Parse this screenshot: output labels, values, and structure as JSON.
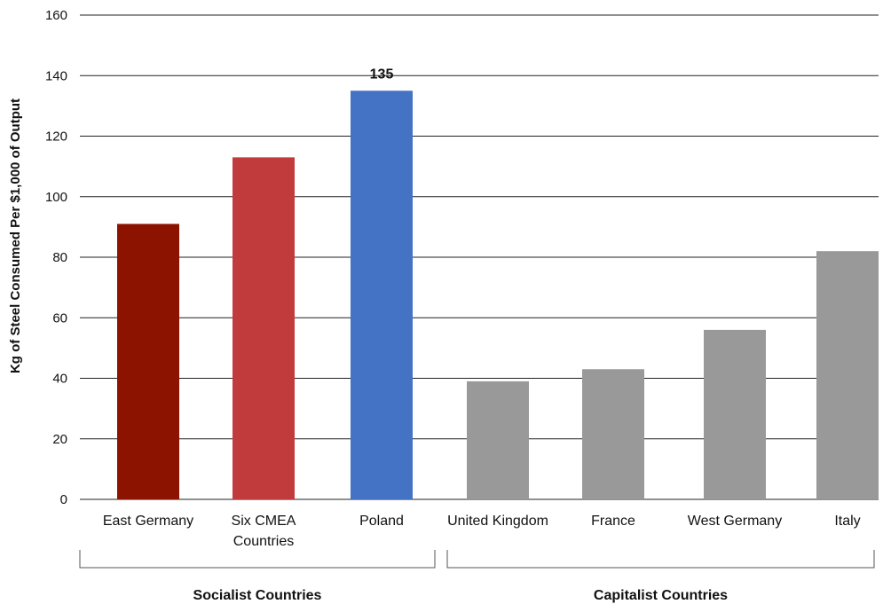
{
  "chart_data": {
    "type": "bar",
    "ylabel": "Kg of Steel Consumed Per $1,000 of Output",
    "xlabel": "",
    "ylim": [
      0,
      160
    ],
    "yticks": [
      0,
      20,
      40,
      60,
      80,
      100,
      120,
      140,
      160
    ],
    "grid": true,
    "categories": [
      {
        "label": [
          "East Germany"
        ],
        "value": 91,
        "color": "#8B1300"
      },
      {
        "label": [
          "Six CMEA",
          "Countries"
        ],
        "value": 113,
        "color": "#C13A3C"
      },
      {
        "label": [
          "Poland"
        ],
        "value": 135,
        "color": "#4472C4",
        "data_label": "135"
      },
      {
        "label": [
          "United Kingdom"
        ],
        "value": 39,
        "color": "#999999"
      },
      {
        "label": [
          "France"
        ],
        "value": 43,
        "color": "#999999"
      },
      {
        "label": [
          "West Germany"
        ],
        "value": 56,
        "color": "#999999"
      },
      {
        "label": [
          "Italy"
        ],
        "value": 82,
        "color": "#999999"
      }
    ],
    "groups": [
      {
        "label": "Socialist Countries",
        "categories": [
          0,
          1,
          2
        ]
      },
      {
        "label": "Capitalist Countries",
        "categories": [
          3,
          4,
          5,
          6
        ]
      }
    ]
  }
}
